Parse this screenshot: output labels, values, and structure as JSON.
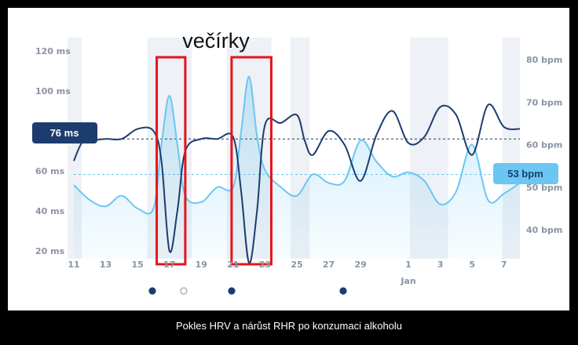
{
  "caption": "Pokles HRV a nárůst RHR po konzumaci alkoholu",
  "annotation": "večírky",
  "hrv_badge": "76 ms",
  "rhr_badge": "53 bpm",
  "colors": {
    "hrv": "#1d3c6e",
    "rhr": "#6cc6f2",
    "highlight": "#e5141b",
    "band": "#eef1f5",
    "axis_text": "#8a93a3"
  },
  "chart_data": {
    "type": "line",
    "title": "",
    "xlabel": "",
    "x_ticks": [
      "11",
      "13",
      "15",
      "17",
      "19",
      "21",
      "23",
      "25",
      "27",
      "29",
      "1",
      "3",
      "5",
      "7"
    ],
    "x_sublabel": "Jan",
    "y_left": {
      "ylabel": "",
      "unit": "ms",
      "ylim": [
        10,
        130
      ],
      "ticks": [
        "20 ms",
        "40 ms",
        "60 ms",
        "100 ms",
        "120 ms"
      ]
    },
    "y_right": {
      "ylabel": "",
      "unit": "bpm",
      "ylim": [
        35,
        85
      ],
      "ticks": [
        "40 bpm",
        "50 bpm",
        "60 bpm",
        "70 bpm",
        "80 bpm"
      ]
    },
    "series": [
      {
        "name": "",
        "axis": "left",
        "points": [
          [
            11,
            65
          ],
          [
            11.5,
            74
          ],
          [
            12,
            75
          ],
          [
            13,
            76
          ],
          [
            14,
            76
          ],
          [
            15,
            81
          ],
          [
            16,
            80
          ],
          [
            16.5,
            65
          ],
          [
            17,
            20
          ],
          [
            17.5,
            40
          ],
          [
            18,
            70
          ],
          [
            19,
            76
          ],
          [
            20,
            76
          ],
          [
            21,
            77
          ],
          [
            21.5,
            50
          ],
          [
            22,
            14
          ],
          [
            22.5,
            40
          ],
          [
            23,
            83
          ],
          [
            24,
            84
          ],
          [
            25,
            88
          ],
          [
            25.5,
            75
          ],
          [
            26,
            68
          ],
          [
            27,
            80
          ],
          [
            28,
            73
          ],
          [
            29,
            55
          ],
          [
            30,
            78
          ],
          [
            31,
            90
          ],
          [
            32,
            74
          ],
          [
            33,
            77
          ],
          [
            34,
            92
          ],
          [
            35,
            88
          ],
          [
            36,
            68
          ],
          [
            37,
            93
          ],
          [
            38,
            82
          ],
          [
            39,
            81
          ]
        ],
        "guide": 76
      },
      {
        "name": "",
        "axis": "right",
        "points": [
          [
            11,
            50.5
          ],
          [
            12,
            47
          ],
          [
            13,
            45.5
          ],
          [
            14,
            48
          ],
          [
            15,
            45
          ],
          [
            16,
            45
          ],
          [
            16.5,
            60
          ],
          [
            17,
            71.5
          ],
          [
            17.5,
            60
          ],
          [
            18,
            48
          ],
          [
            19,
            46.5
          ],
          [
            20,
            50
          ],
          [
            21,
            50
          ],
          [
            21.5,
            63
          ],
          [
            22,
            76
          ],
          [
            22.5,
            62
          ],
          [
            23,
            54
          ],
          [
            24,
            50
          ],
          [
            25,
            48
          ],
          [
            26,
            53
          ],
          [
            27,
            51
          ],
          [
            28,
            51.5
          ],
          [
            29,
            61
          ],
          [
            30,
            56
          ],
          [
            31,
            52.5
          ],
          [
            32,
            53.5
          ],
          [
            33,
            51.5
          ],
          [
            34,
            46
          ],
          [
            35,
            49
          ],
          [
            36,
            60
          ],
          [
            37,
            47
          ],
          [
            38,
            48.5
          ],
          [
            39,
            51
          ]
        ],
        "guide": 53
      }
    ],
    "highlight_ranges": [
      [
        16.5,
        17.7
      ],
      [
        21.2,
        23.1
      ]
    ],
    "markers": [
      "filled",
      "hollow",
      "filled",
      "filled"
    ],
    "grid": false,
    "legend": "none"
  }
}
